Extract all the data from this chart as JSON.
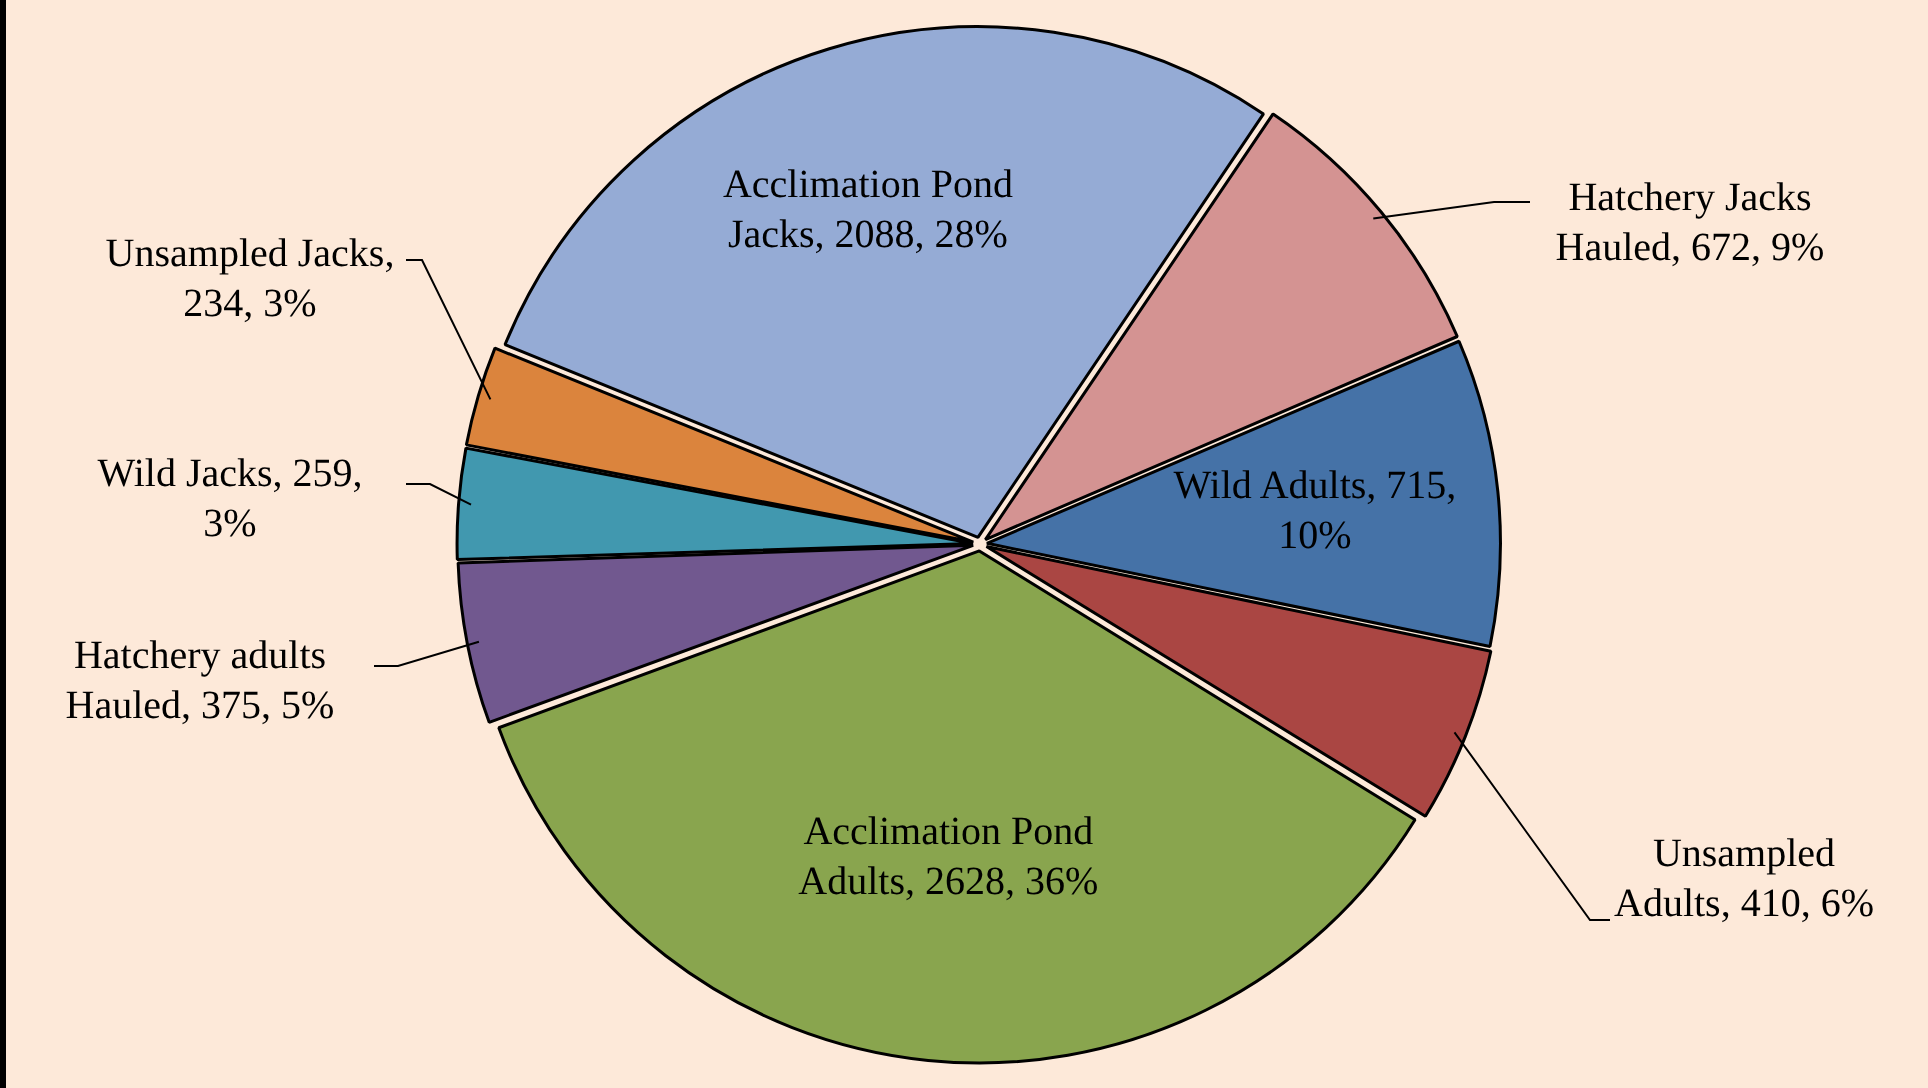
{
  "chart_data": {
    "type": "pie",
    "categories": [
      "Hatchery Jacks Hauled",
      "Wild Adults",
      "Unsampled Adults",
      "Acclimation Pond Adults",
      "Hatchery adults Hauled",
      "Wild Jacks",
      "Unsampled Jacks",
      "Acclimation Pond Jacks"
    ],
    "values": [
      672,
      715,
      410,
      2628,
      375,
      259,
      234,
      2088
    ],
    "colors": [
      "#d49392",
      "#4572a7",
      "#aa4643",
      "#89a54e",
      "#71588f",
      "#4198af",
      "#db843d",
      "#95abd5"
    ],
    "value_labels": [
      ", 672, 9%",
      ", 715, 10%",
      ", 410, 6%",
      ", 2628, 36%",
      ", 375, 5%",
      ", 259, 3%",
      ", 234, 3%",
      ", 2088, 28%"
    ],
    "legend": false
  }
}
